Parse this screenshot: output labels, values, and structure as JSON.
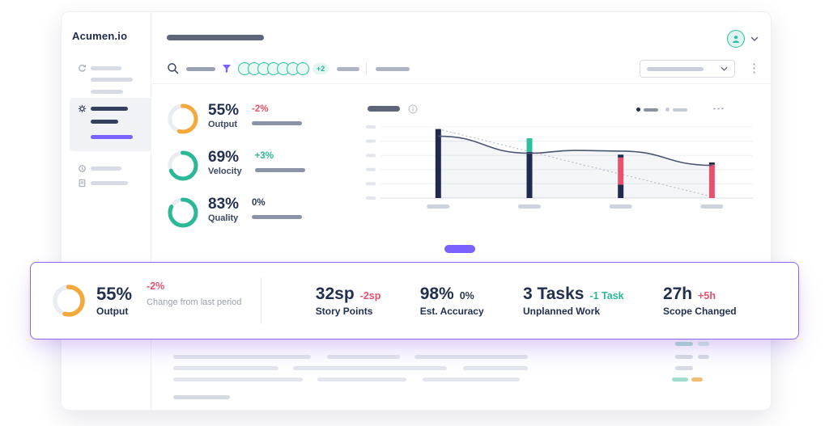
{
  "app": {
    "logo": "Acumen.io",
    "accent_color": "#7b61ff",
    "teal": "#2bbf9e",
    "red": "#e8516e",
    "orange": "#f5a83c",
    "navy": "#22304f"
  },
  "toolbar": {
    "avatar_count": 7,
    "avatar_overflow": "+2"
  },
  "kpi_panel": [
    {
      "value": "55%",
      "label": "Output",
      "delta": "-2%",
      "delta_color": "#e8516e",
      "ring_color": "#f5a83c",
      "percent": 55
    },
    {
      "value": "69%",
      "label": "Velocity",
      "delta": "+3%",
      "delta_color": "#2bb896",
      "ring_color": "#2bb896",
      "percent": 69
    },
    {
      "value": "83%",
      "label": "Quality",
      "delta": "0%",
      "delta_color": "#2b3852",
      "ring_color": "#2bb896",
      "percent": 83
    }
  ],
  "overlay_stats": [
    {
      "value": "55%",
      "label": "Output",
      "delta": "-2%",
      "delta_color": "#e8516e",
      "note": "Change from last period",
      "percent": 55,
      "ring_color": "#f5a83c"
    },
    {
      "value": "32sp",
      "label": "Story Points",
      "delta": "-2sp",
      "delta_color": "#e8516e"
    },
    {
      "value": "98%",
      "label": "Est. Accuracy",
      "delta": "0%",
      "delta_color": "#2b3852"
    },
    {
      "value": "3 Tasks",
      "label": "Unplanned Work",
      "delta": "-1 Task",
      "delta_color": "#2bb896"
    },
    {
      "value": "27h",
      "label": "Scope Changed",
      "delta": "+5h",
      "delta_color": "#e8516e"
    }
  ],
  "chart_data": {
    "type": "combo",
    "title": "",
    "note": "axis and category labels are redacted placeholder bars in the mock",
    "gridlines": 6,
    "bar_positions": [
      0.155,
      0.4,
      0.645,
      0.89
    ],
    "bars": [
      {
        "segments": [
          {
            "color": "navy",
            "from": 0,
            "to": 97
          }
        ]
      },
      {
        "segments": [
          {
            "color": "navy",
            "from": 0,
            "to": 65
          },
          {
            "color": "teal",
            "from": 65,
            "to": 84
          }
        ]
      },
      {
        "segments": [
          {
            "color": "navy",
            "from": 0,
            "to": 19
          },
          {
            "color": "red",
            "from": 19,
            "to": 57
          },
          {
            "color": "navy",
            "from": 57,
            "to": 61
          }
        ]
      },
      {
        "segments": [
          {
            "color": "red",
            "from": 0,
            "to": 47
          },
          {
            "color": "navy",
            "from": 47,
            "to": 50
          }
        ]
      }
    ],
    "line": {
      "color": "#4a5670",
      "points": [
        [
          0.155,
          87
        ],
        [
          0.4,
          63
        ],
        [
          0.52,
          67
        ],
        [
          0.645,
          66
        ],
        [
          0.89,
          46
        ]
      ]
    },
    "trend": {
      "color": "#b6bdc9",
      "points": [
        [
          0.155,
          97
        ],
        [
          0.89,
          2
        ]
      ]
    },
    "colors": {
      "navy": "#1f2b4e",
      "teal": "#2bc19c",
      "red": "#e8516e"
    }
  }
}
